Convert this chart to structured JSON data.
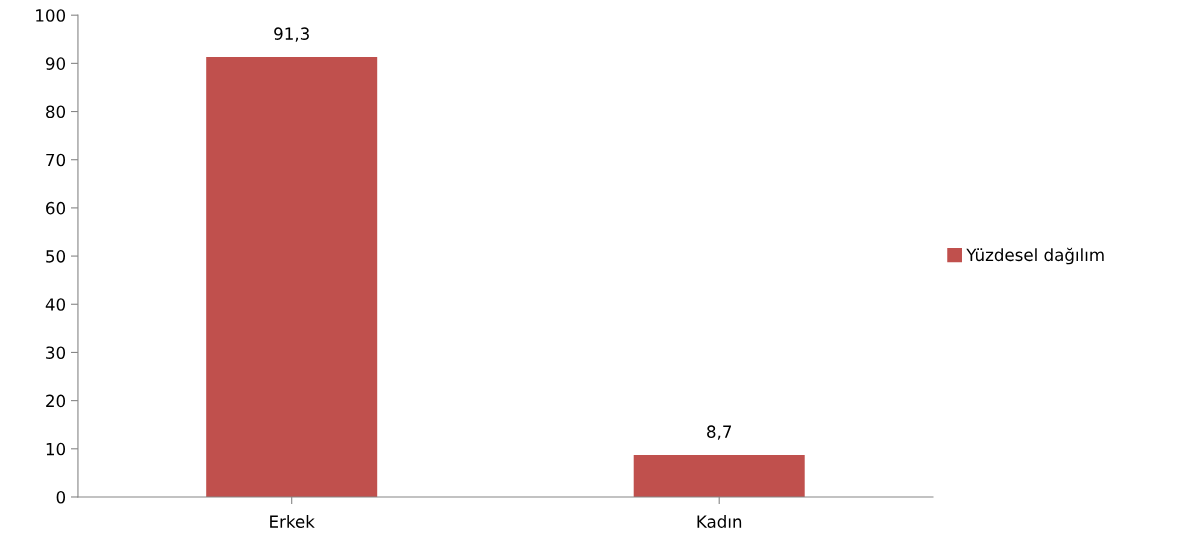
{
  "chart_data": {
    "type": "bar",
    "categories": [
      "Erkek",
      "Kadın"
    ],
    "series": [
      {
        "name": "Yüzdesel dağılım",
        "color": "#c0504d",
        "values": [
          91.3,
          8.7
        ],
        "value_labels": [
          "91,3",
          "8,7"
        ]
      }
    ],
    "ylim": [
      0,
      100
    ],
    "yticks": [
      0,
      10,
      20,
      30,
      40,
      50,
      60,
      70,
      80,
      90,
      100
    ],
    "grid": false,
    "legend": "right"
  }
}
